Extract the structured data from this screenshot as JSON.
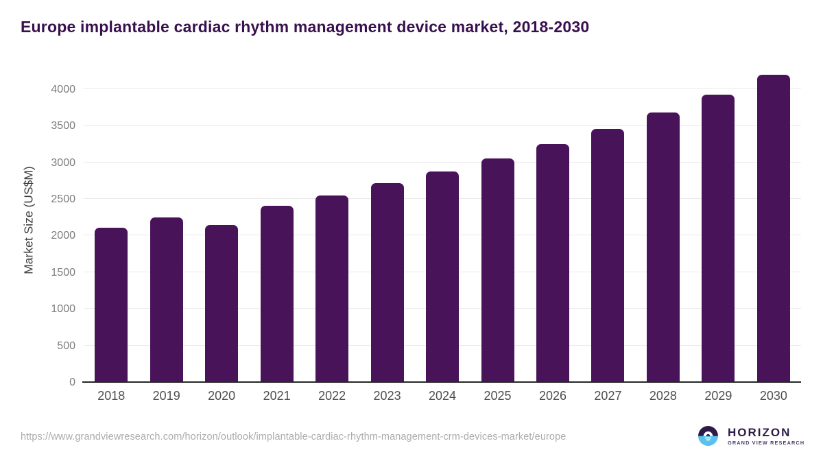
{
  "page": {
    "title": "Europe implantable cardiac rhythm management device market, 2018-2030",
    "source_url": "https://www.grandviewresearch.com/horizon/outlook/implantable-cardiac-rhythm-management-crm-devices-market/europe",
    "logo": {
      "name": "HORIZON",
      "subtitle": "GRAND VIEW RESEARCH"
    }
  },
  "chart_data": {
    "type": "bar",
    "title": "Europe implantable cardiac rhythm management device market, 2018-2030",
    "categories": [
      "2018",
      "2019",
      "2020",
      "2021",
      "2022",
      "2023",
      "2024",
      "2025",
      "2026",
      "2027",
      "2028",
      "2029",
      "2030"
    ],
    "values": [
      2110,
      2245,
      2145,
      2405,
      2550,
      2715,
      2875,
      3050,
      3245,
      3455,
      3680,
      3920,
      4190
    ],
    "xlabel": "",
    "ylabel": "Market Size (US$M)",
    "yticks": [
      0,
      500,
      1000,
      1500,
      2000,
      2500,
      3000,
      3500,
      4000
    ],
    "ylim": [
      0,
      4250
    ],
    "grid": true,
    "legend": false,
    "bar_color": "#481359"
  },
  "colors": {
    "title": "#38104e",
    "bar": "#481359",
    "ylabel": "#404040",
    "ytick": "#7d7d7d",
    "xtick": "#4f4f4f",
    "gridline": "#e9e9e9",
    "baseline": "#262626",
    "url": "#ababab",
    "logo_dark": "#2d1a47",
    "logo_blue": "#58c1ec",
    "background": "#ffffff"
  }
}
